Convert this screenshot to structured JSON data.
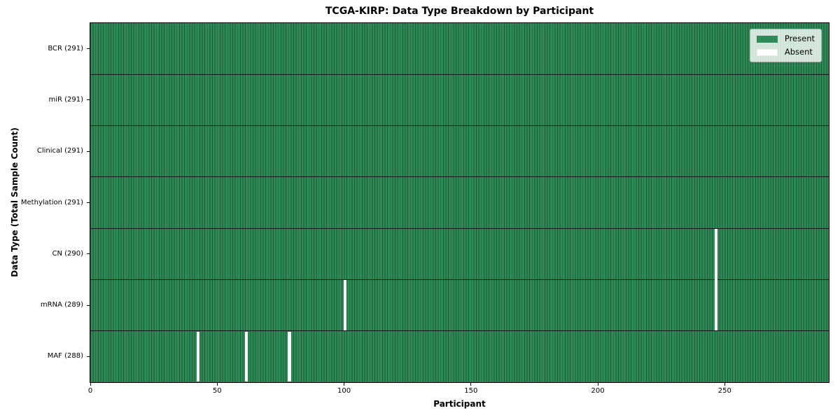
{
  "colors": {
    "present": "#2e8b57",
    "absent": "#ffffff",
    "cell_edge": "#1d5837",
    "row_divider": "#15191a",
    "spine": "#000000",
    "text": "#000000"
  },
  "chart_data": {
    "type": "heatmap",
    "title": "TCGA-KIRP: Data Type Breakdown by Participant",
    "xlabel": "Participant",
    "ylabel": "Data Type (Total Sample Count)",
    "total_participants": 291,
    "x_range": [
      0,
      291
    ],
    "x_ticks": [
      0,
      50,
      100,
      150,
      200,
      250
    ],
    "grid": false,
    "legend_position": "upper right",
    "legend_entries": [
      {
        "label": "Present",
        "color": "#2e8b57"
      },
      {
        "label": "Absent",
        "color": "#ffffff"
      }
    ],
    "rows": [
      {
        "label": "BCR (291)",
        "data_type": "BCR",
        "present_count": 291,
        "absent_participants": []
      },
      {
        "label": "miR (291)",
        "data_type": "miR",
        "present_count": 291,
        "absent_participants": []
      },
      {
        "label": "Clinical (291)",
        "data_type": "Clinical",
        "present_count": 291,
        "absent_participants": []
      },
      {
        "label": "Methylation (291)",
        "data_type": "Methylation",
        "present_count": 291,
        "absent_participants": []
      },
      {
        "label": "CN (290)",
        "data_type": "CN",
        "present_count": 290,
        "absent_participants": [
          246
        ]
      },
      {
        "label": "mRNA (289)",
        "data_type": "mRNA",
        "present_count": 289,
        "absent_participants": [
          100,
          246
        ]
      },
      {
        "label": "MAF (288)",
        "data_type": "MAF",
        "present_count": 288,
        "absent_participants": [
          42,
          61,
          78
        ]
      }
    ]
  }
}
